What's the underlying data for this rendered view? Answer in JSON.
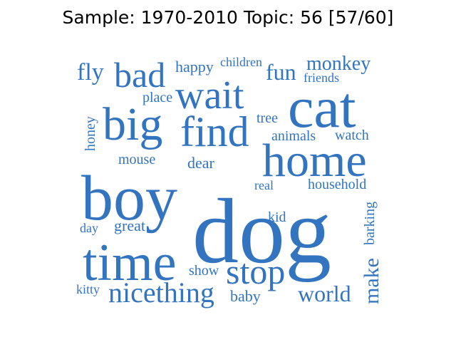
{
  "title": "Sample: 1970-2010 Topic: 56 [57/60]",
  "word_color": "#3274c0",
  "words": [
    "dog",
    "boy",
    "cat",
    "home",
    "time",
    "big",
    "find",
    "wait",
    "bad",
    "stop",
    "nicething",
    "world",
    "make",
    "fun",
    "monkey",
    "fly",
    "happy",
    "children",
    "friends",
    "place",
    "tree",
    "animals",
    "watch",
    "honey",
    "mouse",
    "dear",
    "real",
    "household",
    "kid",
    "barking",
    "great",
    "day",
    "show",
    "kitty",
    "baby"
  ]
}
